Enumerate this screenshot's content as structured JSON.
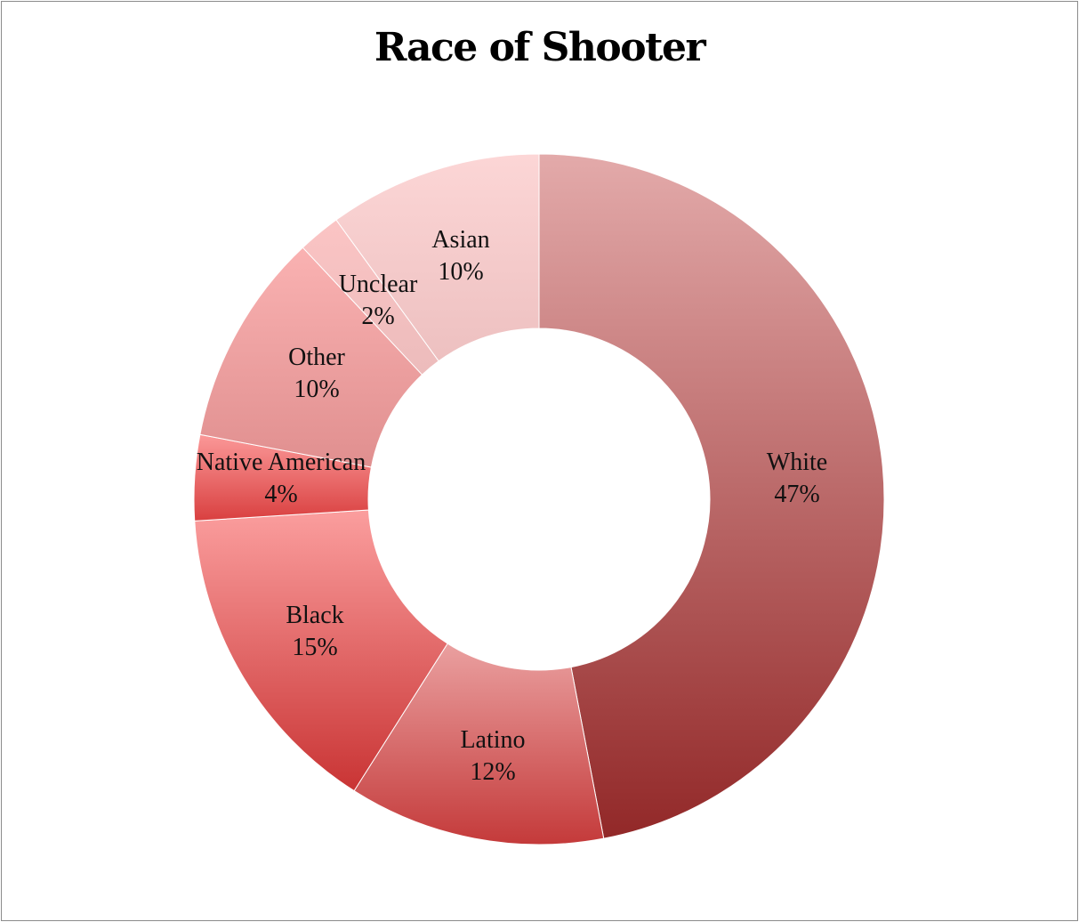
{
  "chart_data": {
    "type": "pie",
    "donut": true,
    "title": "Race of Shooter",
    "categories": [
      "White",
      "Latino",
      "Black",
      "Native American",
      "Other",
      "Unclear",
      "Asian"
    ],
    "values": [
      47,
      12,
      15,
      4,
      10,
      2,
      10
    ],
    "value_labels": [
      "47%",
      "12%",
      "15%",
      "4%",
      "10%",
      "2%",
      "10%"
    ],
    "colors": [
      [
        "#e3aaaa",
        "#922828"
      ],
      [
        "#eaa0a0",
        "#c43a3a"
      ],
      [
        "#fb9e9e",
        "#c93434"
      ],
      [
        "#fb9898",
        "#d94040"
      ],
      [
        "#fab2b2",
        "#e08f8f"
      ],
      [
        "#fbc4c4",
        "#ecbcbc"
      ],
      [
        "#fcd6d6",
        "#edc0c0"
      ]
    ],
    "legend": "none"
  }
}
